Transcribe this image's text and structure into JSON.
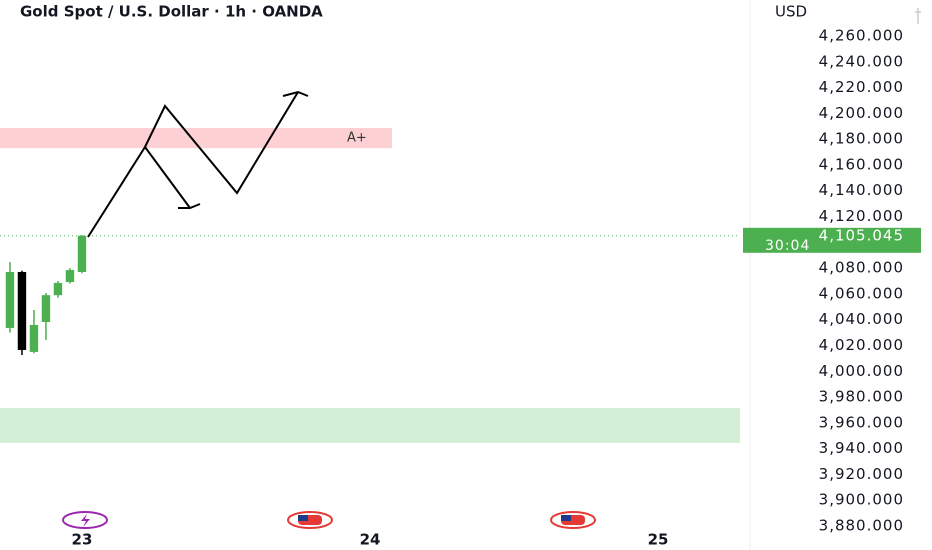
{
  "chart_data": {
    "type": "candlestick",
    "title": "Gold Spot / U.S. Dollar · 1h · OANDA",
    "y_axis_label": "USD",
    "x": [
      -6,
      -5,
      -4,
      -3,
      -2,
      -1,
      0
    ],
    "open": [
      4033.6,
      4077,
      4015,
      4038.2,
      4059,
      4069.2,
      4077
    ],
    "high": [
      4084.7,
      4078,
      4047.5,
      4060.7,
      4070,
      4080,
      4105.5
    ],
    "low": [
      4030,
      4012.6,
      4014,
      4024.2,
      4057,
      4068,
      4076
    ],
    "close": [
      4077,
      4016.5,
      4035.9,
      4059,
      4068.5,
      4078.5,
      4105.045
    ],
    "up_color": "#4caf50",
    "down_color": "#000000",
    "xlim": [
      -6.83,
      54.83
    ],
    "xticks": [
      {
        "value": 0,
        "label": "23"
      },
      {
        "value": 24,
        "label": "24"
      },
      {
        "value": 48,
        "label": "25"
      }
    ],
    "ylim": [
      3861.4,
      4287.9
    ],
    "yticks": [
      {
        "value": 4260,
        "label": "4,260.000"
      },
      {
        "value": 4240,
        "label": "4,240.000"
      },
      {
        "value": 4220,
        "label": "4,220.000"
      },
      {
        "value": 4200,
        "label": "4,200.000"
      },
      {
        "value": 4180,
        "label": "4,180.000"
      },
      {
        "value": 4160,
        "label": "4,160.000"
      },
      {
        "value": 4140,
        "label": "4,140.000"
      },
      {
        "value": 4120,
        "label": "4,120.000"
      },
      {
        "value": 4080,
        "label": "4,080.000"
      },
      {
        "value": 4060,
        "label": "4,060.000"
      },
      {
        "value": 4040,
        "label": "4,040.000"
      },
      {
        "value": 4020,
        "label": "4,020.000"
      },
      {
        "value": 4000,
        "label": "4,000.000"
      },
      {
        "value": 3980,
        "label": "3,980.000"
      },
      {
        "value": 3960,
        "label": "3,960.000"
      },
      {
        "value": 3940,
        "label": "3,940.000"
      },
      {
        "value": 3920,
        "label": "3,920.000"
      },
      {
        "value": 3900,
        "label": "3,900.000"
      },
      {
        "value": 3880,
        "label": "3,880.000"
      }
    ],
    "last_price": {
      "value": 4105.045,
      "label": "4,105.045"
    },
    "countdown": "30:04",
    "zones": [
      {
        "low": 4173,
        "high": 4188.7,
        "color": "#fdd0d4",
        "label": "A+",
        "x_end": 25.83
      },
      {
        "low": 3944.4,
        "high": 3971.5,
        "color": "#d3efd5",
        "x_end": 54.83
      }
    ]
  }
}
